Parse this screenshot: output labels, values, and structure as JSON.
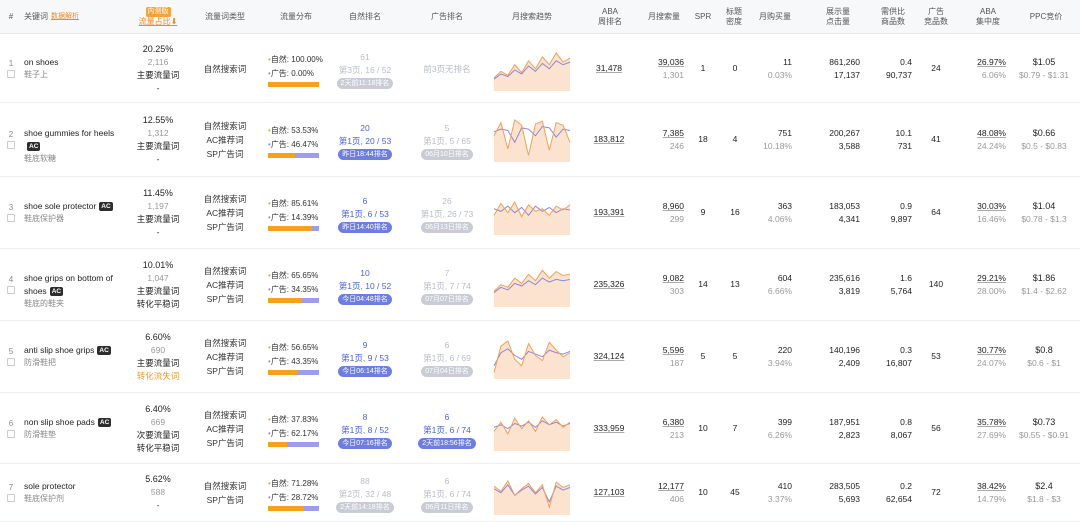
{
  "header": {
    "num": "#",
    "keyword": "关键词",
    "keyword_link": "数据解析",
    "share_badge": "内测版",
    "share": "流量占比",
    "share_sort": "⬇",
    "type": "流量词类型",
    "dist": "流量分布",
    "nat_rank": "自然排名",
    "ad_rank": "广告排名",
    "trend": "月搜索趋势",
    "aba": "ABA\n周排名",
    "msv": "月搜索量",
    "spr": "SPR",
    "title_density": "标题\n密度",
    "purchases": "月购买量",
    "impr_clicks": "展示量\n点击量",
    "supply_ratio": "需供比\n商品数",
    "ad_products": "广告\n竞品数",
    "aba_conc": "ABA\n集中度",
    "ppc": "PPC竞价"
  },
  "rows": [
    {
      "num": "1",
      "kw": "on shoes",
      "ac": false,
      "cn": "鞋子上",
      "share": "20.25%",
      "share_sub": "2,116",
      "tags": [
        {
          "t": "主要流量词",
          "c": "dark"
        },
        {
          "t": "-",
          "c": "dark"
        }
      ],
      "types": [
        "自然搜索词"
      ],
      "nat_pct": "100.00%",
      "ad_pct": "0.00%",
      "nat_frac": 1.0,
      "nat": {
        "a": "61",
        "b": "第3页, 16 / 52",
        "pill": "2天前11:18排名",
        "gray": true
      },
      "ad": {
        "a": "",
        "b": "前3页无排名",
        "pill": "",
        "gray": true
      },
      "trend": {
        "o": [
          20,
          30,
          24,
          40,
          28,
          46,
          34,
          52,
          40,
          58,
          44,
          50
        ],
        "p": [
          18,
          26,
          22,
          32,
          26,
          38,
          30,
          42,
          34,
          46,
          40,
          44
        ]
      },
      "aba": "31,478",
      "msv": "39,036",
      "msv2": "1,301",
      "spr": "1",
      "title": "0",
      "pur": "11",
      "pur2": "0.03%",
      "impr": "861,260",
      "click": "17,137",
      "ratio": "0.4",
      "goods": "90,737",
      "adcomp": "24",
      "conc": "26.97%",
      "conc2": "6.06%",
      "ppc": "$1.05",
      "ppc_range": "$0.79 - $1.31"
    },
    {
      "num": "2",
      "kw": "shoe gummies for heels",
      "ac": true,
      "cn": "鞋底软糖",
      "share": "12.55%",
      "share_sub": "1,312",
      "tags": [
        {
          "t": "主要流量词",
          "c": "dark"
        },
        {
          "t": "-",
          "c": "dark"
        }
      ],
      "types": [
        "自然搜索词",
        "AC推荐词",
        "SP广告词"
      ],
      "nat_pct": "53.53%",
      "ad_pct": "46.47%",
      "nat_frac": 0.5353,
      "nat": {
        "a": "20",
        "b": "第1页, 20 / 53",
        "pill": "昨日18:44排名",
        "gray": false
      },
      "ad": {
        "a": "5",
        "b": "第1页, 5 / 65",
        "pill": "06月10日排名",
        "gray": true
      },
      "trend": {
        "o": [
          40,
          60,
          20,
          64,
          56,
          10,
          58,
          62,
          18,
          60,
          56,
          30
        ],
        "p": [
          46,
          50,
          48,
          30,
          52,
          50,
          40,
          54,
          52,
          38,
          50,
          48
        ]
      },
      "aba": "183,812",
      "msv": "7,385",
      "msv2": "246",
      "spr": "18",
      "title": "4",
      "pur": "751",
      "pur2": "10.18%",
      "impr": "200,267",
      "click": "3,588",
      "ratio": "10.1",
      "goods": "731",
      "adcomp": "41",
      "conc": "48.08%",
      "conc2": "24.24%",
      "ppc": "$0.66",
      "ppc_range": "$0.5 - $0.83"
    },
    {
      "num": "3",
      "kw": "shoe sole protector",
      "ac": true,
      "cn": "鞋底保护器",
      "share": "11.45%",
      "share_sub": "1,197",
      "tags": [
        {
          "t": "主要流量词",
          "c": "dark"
        },
        {
          "t": "-",
          "c": "dark"
        }
      ],
      "types": [
        "自然搜索词",
        "AC推荐词",
        "SP广告词"
      ],
      "nat_pct": "85.61%",
      "ad_pct": "14.39%",
      "nat_frac": 0.8561,
      "nat": {
        "a": "6",
        "b": "第1页, 6 / 53",
        "pill": "昨日14:40排名",
        "gray": false
      },
      "ad": {
        "a": "26",
        "b": "第1页, 26 / 73",
        "pill": "06月13日排名",
        "gray": true
      },
      "trend": {
        "o": [
          30,
          48,
          34,
          50,
          28,
          46,
          36,
          40,
          30,
          44,
          38,
          46
        ],
        "p": [
          40,
          36,
          44,
          34,
          42,
          30,
          44,
          36,
          42,
          34,
          40,
          38
        ]
      },
      "aba": "193,391",
      "msv": "8,960",
      "msv2": "299",
      "spr": "9",
      "title": "16",
      "pur": "363",
      "pur2": "4.06%",
      "impr": "183,053",
      "click": "4,341",
      "ratio": "0.9",
      "goods": "9,897",
      "adcomp": "64",
      "conc": "30.03%",
      "conc2": "16.46%",
      "ppc": "$1.04",
      "ppc_range": "$0.78 - $1.3"
    },
    {
      "num": "4",
      "kw": "shoe grips on bottom of shoes",
      "ac": true,
      "cn": "鞋底的鞋夹",
      "share": "10.01%",
      "share_sub": "1,047",
      "tags": [
        {
          "t": "主要流量词",
          "c": "dark"
        },
        {
          "t": "转化平稳词",
          "c": "dark"
        }
      ],
      "types": [
        "自然搜索词",
        "AC推荐词",
        "SP广告词"
      ],
      "nat_pct": "65.65%",
      "ad_pct": "34.35%",
      "nat_frac": 0.6565,
      "nat": {
        "a": "10",
        "b": "第1页, 10 / 52",
        "pill": "今日04:48排名",
        "gray": false
      },
      "ad": {
        "a": "7",
        "b": "第1页, 7 / 74",
        "pill": "07月07日排名",
        "gray": true
      },
      "trend": {
        "o": [
          24,
          34,
          30,
          44,
          36,
          50,
          40,
          56,
          44,
          54,
          48,
          50
        ],
        "p": [
          22,
          30,
          26,
          36,
          32,
          40,
          34,
          44,
          38,
          42,
          40,
          42
        ]
      },
      "aba": "235,326",
      "msv": "9,082",
      "msv2": "303",
      "spr": "14",
      "title": "13",
      "pur": "604",
      "pur2": "6.66%",
      "impr": "235,616",
      "click": "3,819",
      "ratio": "1.6",
      "goods": "5,764",
      "adcomp": "140",
      "conc": "29.21%",
      "conc2": "28.00%",
      "ppc": "$1.86",
      "ppc_range": "$1.4 - $2.62"
    },
    {
      "num": "5",
      "kw": "anti slip shoe grips",
      "ac": true,
      "cn": "防滑鞋把",
      "share": "6.60%",
      "share_sub": "690",
      "tags": [
        {
          "t": "主要流量词",
          "c": "dark"
        },
        {
          "t": "转化流失词",
          "c": "orange"
        }
      ],
      "types": [
        "自然搜索词",
        "AC推荐词",
        "SP广告词"
      ],
      "nat_pct": "56.65%",
      "ad_pct": "43.35%",
      "nat_frac": 0.5665,
      "nat": {
        "a": "9",
        "b": "第1页, 9 / 53",
        "pill": "今日06:14排名",
        "gray": false
      },
      "ad": {
        "a": "6",
        "b": "第1页, 6 / 69",
        "pill": "07月04日排名",
        "gray": true
      },
      "trend": {
        "o": [
          10,
          50,
          58,
          30,
          20,
          54,
          36,
          28,
          56,
          44,
          34,
          40
        ],
        "p": [
          20,
          40,
          46,
          36,
          30,
          42,
          38,
          34,
          44,
          40,
          38,
          42
        ]
      },
      "aba": "324,124",
      "msv": "5,596",
      "msv2": "187",
      "spr": "5",
      "title": "5",
      "pur": "220",
      "pur2": "3.94%",
      "impr": "140,196",
      "click": "2,409",
      "ratio": "0.3",
      "goods": "16,807",
      "adcomp": "53",
      "conc": "30.77%",
      "conc2": "24.07%",
      "ppc": "$0.8",
      "ppc_range": "$0.6 - $1"
    },
    {
      "num": "6",
      "kw": "non slip shoe pads",
      "ac": true,
      "cn": "防滑鞋垫",
      "share": "6.40%",
      "share_sub": "669",
      "tags": [
        {
          "t": "次要流量词",
          "c": "dark"
        },
        {
          "t": "转化平稳词",
          "c": "dark"
        }
      ],
      "types": [
        "自然搜索词",
        "AC推荐词",
        "SP广告词"
      ],
      "nat_pct": "37.83%",
      "ad_pct": "62.17%",
      "nat_frac": 0.3783,
      "nat": {
        "a": "8",
        "b": "第1页, 8 / 52",
        "pill": "今日07:16排名",
        "gray": false
      },
      "ad": {
        "a": "6",
        "b": "第1页, 6 / 74",
        "pill": "2天前18:56排名",
        "gray": false
      },
      "trend": {
        "o": [
          30,
          44,
          26,
          50,
          34,
          46,
          30,
          52,
          40,
          48,
          36,
          44
        ],
        "p": [
          36,
          40,
          34,
          42,
          38,
          44,
          36,
          46,
          40,
          44,
          38,
          42
        ]
      },
      "aba": "333,959",
      "msv": "6,380",
      "msv2": "213",
      "spr": "10",
      "title": "7",
      "pur": "399",
      "pur2": "6.26%",
      "impr": "187,951",
      "click": "2,823",
      "ratio": "0.8",
      "goods": "8,067",
      "adcomp": "56",
      "conc": "35.78%",
      "conc2": "27.69%",
      "ppc": "$0.73",
      "ppc_range": "$0.55 - $0.91"
    },
    {
      "num": "7",
      "kw": "sole protector",
      "ac": false,
      "cn": "鞋底保护剂",
      "share": "5.62%",
      "share_sub": "588",
      "tags": [
        {
          "t": "-",
          "c": "dark"
        }
      ],
      "types": [
        "自然搜索词",
        "SP广告词"
      ],
      "nat_pct": "71.28%",
      "ad_pct": "28.72%",
      "nat_frac": 0.7128,
      "nat": {
        "a": "88",
        "b": "第2页, 32 / 48",
        "pill": "2天前14:18排名",
        "gray": true
      },
      "ad": {
        "a": "6",
        "b": "第1页, 6 / 74",
        "pill": "06月11日排名",
        "gray": true
      },
      "trend": {
        "o": [
          44,
          36,
          52,
          30,
          40,
          48,
          34,
          46,
          12,
          50,
          42,
          46
        ],
        "p": [
          40,
          34,
          46,
          30,
          38,
          44,
          32,
          42,
          20,
          44,
          38,
          42
        ]
      },
      "aba": "127,103",
      "msv": "12,177",
      "msv2": "406",
      "spr": "10",
      "title": "45",
      "pur": "410",
      "pur2": "3.37%",
      "impr": "283,505",
      "click": "5,693",
      "ratio": "0.2",
      "goods": "62,654",
      "adcomp": "72",
      "conc": "38.42%",
      "conc2": "14.79%",
      "ppc": "$2.4",
      "ppc_range": "$1.8 - $3"
    }
  ]
}
